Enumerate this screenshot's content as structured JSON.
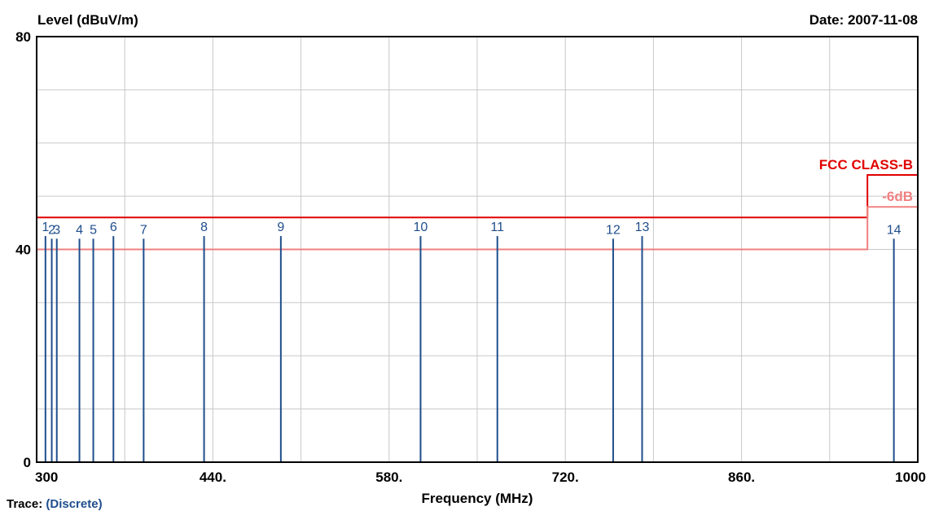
{
  "chart_data": {
    "type": "bar",
    "ylabel": "Level (dBuV/m)",
    "xlabel": "Frequency (MHz)",
    "date": "Date: 2007-11-08",
    "xlim": [
      300,
      1000
    ],
    "ylim": [
      0,
      80
    ],
    "x_ticks": [
      300,
      440,
      580,
      720,
      860,
      1000
    ],
    "x_tick_labels": [
      "300",
      "440.",
      "580.",
      "720.",
      "860.",
      "1000"
    ],
    "y_ticks": [
      0,
      40,
      80
    ],
    "y_tick_labels": [
      "0",
      "40",
      "80"
    ],
    "grid": true,
    "limits": [
      {
        "name": "FCC CLASS-B",
        "color": "#e00000",
        "segments": [
          {
            "x": [
              300,
              960
            ],
            "y": 46
          },
          {
            "x": [
              960,
              1000
            ],
            "y": 54
          }
        ]
      },
      {
        "name": "-6dB",
        "color": "#f08080",
        "segments": [
          {
            "x": [
              300,
              960
            ],
            "y": 40
          },
          {
            "x": [
              960,
              1000
            ],
            "y": 48
          }
        ]
      }
    ],
    "markers": [
      {
        "label": "1",
        "x": 307,
        "y": 42.5
      },
      {
        "label": "2",
        "x": 312,
        "y": 42
      },
      {
        "label": "3",
        "x": 316,
        "y": 42
      },
      {
        "label": "4",
        "x": 334,
        "y": 42
      },
      {
        "label": "5",
        "x": 345,
        "y": 42
      },
      {
        "label": "6",
        "x": 361,
        "y": 42.5
      },
      {
        "label": "7",
        "x": 385,
        "y": 42
      },
      {
        "label": "8",
        "x": 433,
        "y": 42.5
      },
      {
        "label": "9",
        "x": 494,
        "y": 42.5
      },
      {
        "label": "10",
        "x": 605,
        "y": 42.5
      },
      {
        "label": "11",
        "x": 666,
        "y": 42.5
      },
      {
        "label": "12",
        "x": 758,
        "y": 42
      },
      {
        "label": "13",
        "x": 781,
        "y": 42.5
      },
      {
        "label": "14",
        "x": 981,
        "y": 42
      }
    ],
    "bar_color": "#1f4e8c"
  },
  "trace": {
    "label": "Trace:",
    "value": "(Discrete)"
  }
}
